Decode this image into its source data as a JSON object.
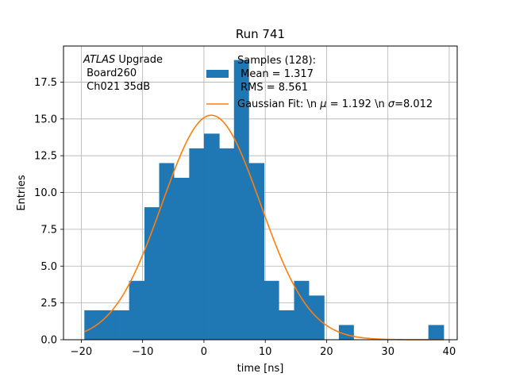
{
  "chart_data": {
    "type": "bar",
    "title": "Run 741",
    "xlabel": "time [ns]",
    "ylabel": "Entries",
    "xlim": [
      -22.9,
      41.3
    ],
    "ylim": [
      0,
      19.95
    ],
    "grid": true,
    "xticks": [
      -20,
      -10,
      0,
      10,
      20,
      30,
      40
    ],
    "xtick_labels": [
      "−20",
      "−10",
      "0",
      "10",
      "20",
      "30",
      "40"
    ],
    "yticks": [
      0,
      2.5,
      5,
      7.5,
      10,
      12.5,
      15,
      17.5
    ],
    "ytick_labels": [
      "0.0",
      "2.5",
      "5.0",
      "7.5",
      "10.0",
      "12.5",
      "15.0",
      "17.5"
    ],
    "histogram": {
      "name": "Samples (128):",
      "bin_edges": [
        -19.5,
        -17.1,
        -14.6,
        -12.2,
        -9.7,
        -7.3,
        -4.9,
        -2.4,
        0.0,
        2.5,
        4.9,
        7.3,
        9.8,
        12.2,
        14.7,
        17.1,
        19.6,
        22.0,
        24.4,
        26.9,
        29.3,
        31.8,
        34.2,
        36.6,
        39.1
      ],
      "counts": [
        2,
        2,
        2,
        4,
        9,
        12,
        11,
        13,
        14,
        13,
        19,
        12,
        4,
        2,
        4,
        3,
        0,
        1,
        0,
        0,
        0,
        0,
        0,
        1
      ],
      "color": "#1f77b4",
      "legend_lines": [
        "Samples (128):",
        " Mean = 1.317",
        " RMS = 8.561"
      ]
    },
    "fit": {
      "name": "Gaussian Fit: \\n $\\mu$ = 1.192 \\n $\\sigma$=8.012",
      "legend_parts": [
        "Gaussian Fit: \\n ",
        "μ",
        " = 1.192 \\n ",
        "σ",
        "=8.012"
      ],
      "type": "gaussian",
      "amplitude": 15.25,
      "mu": 1.192,
      "sigma": 8.012,
      "x_range": [
        -19.5,
        39.1
      ],
      "color": "#ff7f0e"
    },
    "annotation": {
      "line1_italic": "ATLAS",
      "line1_rest": " Upgrade",
      "line2": " Board260",
      "line3": " Ch021 35dB"
    }
  }
}
